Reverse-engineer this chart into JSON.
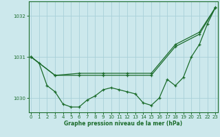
{
  "xlabel": "Graphe pression niveau de la mer (hPa)",
  "bg_color": "#cce8ec",
  "grid_color": "#a8d0d8",
  "line_color": "#1a6b2a",
  "ylim": [
    1029.65,
    1032.35
  ],
  "yticks": [
    1030,
    1031,
    1032
  ],
  "xlim": [
    -0.3,
    23.3
  ],
  "xticks": [
    0,
    1,
    2,
    3,
    4,
    5,
    6,
    7,
    8,
    9,
    10,
    11,
    12,
    13,
    14,
    15,
    16,
    17,
    18,
    19,
    20,
    21,
    22,
    23
  ],
  "line1_x": [
    0,
    1,
    2,
    3,
    4,
    5,
    6,
    7,
    8,
    9,
    10,
    11,
    12,
    13,
    14,
    15,
    16,
    17,
    18,
    19,
    20,
    21,
    22,
    23
  ],
  "line1_y": [
    1031.0,
    1030.85,
    1030.3,
    1030.15,
    1029.85,
    1029.78,
    1029.78,
    1029.95,
    1030.05,
    1030.2,
    1030.25,
    1030.2,
    1030.15,
    1030.1,
    1029.88,
    1029.82,
    1030.0,
    1030.45,
    1030.3,
    1030.5,
    1031.0,
    1031.3,
    1031.8,
    1032.2
  ],
  "line2_x": [
    0,
    3,
    6,
    9,
    12,
    15,
    18,
    21,
    23
  ],
  "line2_y": [
    1031.0,
    1030.55,
    1030.55,
    1030.55,
    1030.55,
    1030.55,
    1031.25,
    1031.55,
    1032.2
  ],
  "line3_x": [
    0,
    3,
    6,
    9,
    12,
    15,
    18,
    21,
    23
  ],
  "line3_y": [
    1031.0,
    1030.55,
    1030.6,
    1030.6,
    1030.6,
    1030.6,
    1031.3,
    1031.6,
    1032.2
  ]
}
